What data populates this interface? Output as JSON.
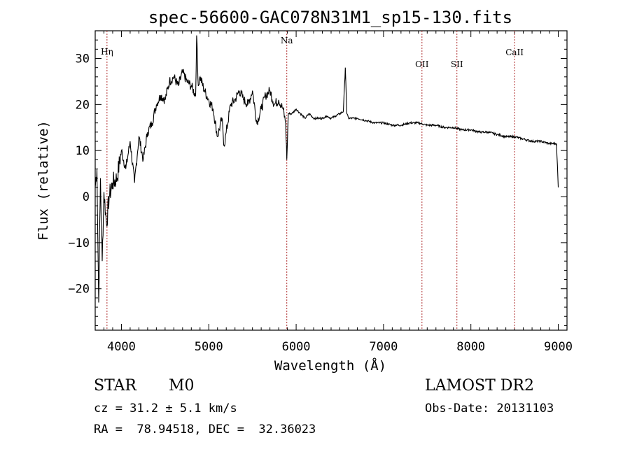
{
  "chart_data": {
    "type": "line",
    "title": "spec-56600-GAC078N31M1_sp15-130.fits",
    "xlabel": "Wavelength (Å)",
    "ylabel": "Flux (relative)",
    "xlim": [
      3700,
      9100
    ],
    "ylim": [
      -29,
      36
    ],
    "xticks": [
      4000,
      5000,
      6000,
      7000,
      8000,
      9000
    ],
    "yticks": [
      -20,
      -10,
      0,
      10,
      20,
      30
    ],
    "xtick_labels": [
      "4000",
      "5000",
      "6000",
      "7000",
      "8000",
      "9000"
    ],
    "ytick_labels": [
      "−20",
      "−10",
      "0",
      "10",
      "20",
      "30"
    ],
    "lines": [
      {
        "label": "Hη",
        "x": 3835
      },
      {
        "label": "Na",
        "x": 5893
      },
      {
        "label": "OII",
        "x": 7440
      },
      {
        "label": "SII",
        "x": 7840
      },
      {
        "label": "CaII",
        "x": 8500
      }
    ],
    "series": [
      {
        "x": [
          3700,
          3720,
          3740,
          3760,
          3780,
          3800,
          3830,
          3860,
          3900,
          3950,
          4000,
          4050,
          4100,
          4150,
          4200,
          4250,
          4300,
          4350,
          4400,
          4450,
          4500,
          4550,
          4600,
          4650,
          4700,
          4750,
          4800,
          4850,
          4861,
          4880,
          4900,
          4950,
          5000,
          5050,
          5100,
          5150,
          5175,
          5200,
          5250,
          5300,
          5350,
          5400,
          5450,
          5500,
          5550,
          5600,
          5650,
          5700,
          5750,
          5800,
          5850,
          5880,
          5893,
          5910,
          5950,
          6000,
          6050,
          6100,
          6150,
          6200,
          6250,
          6300,
          6350,
          6400,
          6450,
          6500,
          6540,
          6563,
          6580,
          6600,
          6650,
          6700,
          6800,
          6900,
          7000,
          7100,
          7200,
          7300,
          7400,
          7500,
          7600,
          7700,
          7800,
          7900,
          8000,
          8100,
          8200,
          8300,
          8400,
          8500,
          8600,
          8700,
          8800,
          8900,
          8980,
          9000
        ],
        "y": [
          2,
          6,
          -23,
          4,
          -14,
          1,
          -6,
          0,
          3,
          4,
          10,
          6,
          12,
          3,
          13,
          8,
          14,
          16,
          20,
          22,
          21,
          25,
          26,
          24,
          27,
          25,
          24,
          22,
          35,
          24,
          26,
          23,
          21,
          19,
          13,
          17,
          11,
          14,
          20,
          21,
          23,
          21,
          20,
          23,
          16,
          19,
          22,
          23,
          20,
          21,
          19,
          16,
          8,
          18,
          18,
          19,
          18,
          17,
          18,
          17,
          17,
          17,
          17.5,
          17,
          17.5,
          18,
          18.5,
          28,
          18,
          17,
          17,
          17,
          16.5,
          16,
          16,
          15.5,
          15.5,
          16,
          16,
          15.5,
          15.5,
          15,
          15,
          14.5,
          14.5,
          14,
          14,
          13.5,
          13,
          13,
          12.5,
          12,
          12,
          11.5,
          11.5,
          2
        ]
      }
    ],
    "grid": false,
    "legend": "none"
  },
  "info": {
    "class_label": "STAR",
    "subclass": "M0",
    "survey": "LAMOST DR2",
    "cz": "cz = 31.2 ± 5.1 km/s",
    "obs_date": "Obs-Date: 20131103",
    "coords": "RA =  78.94518, DEC =  32.36023"
  }
}
